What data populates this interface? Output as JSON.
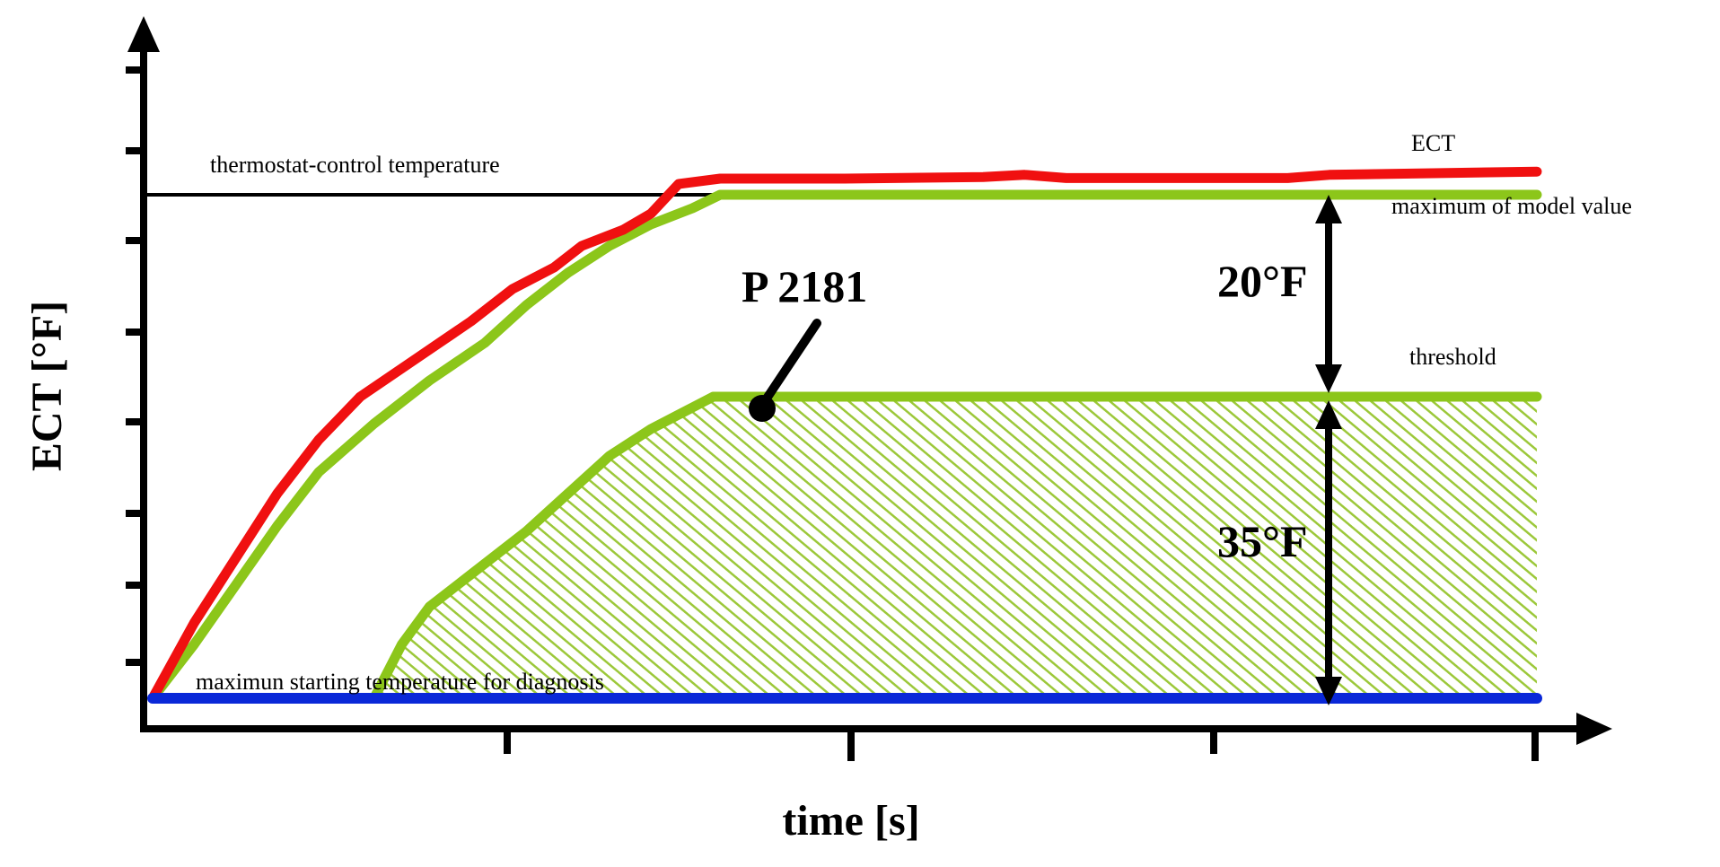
{
  "chart_data": {
    "type": "line",
    "xlabel": "time [s]",
    "ylabel": "ECT [°F]",
    "x_ticks": 4,
    "y_ticks": 7,
    "series": [
      {
        "name": "ECT",
        "color": "#f01010",
        "points": [
          [
            0,
            0
          ],
          [
            0.03,
            0.14
          ],
          [
            0.06,
            0.26
          ],
          [
            0.09,
            0.38
          ],
          [
            0.12,
            0.48
          ],
          [
            0.15,
            0.56
          ],
          [
            0.19,
            0.63
          ],
          [
            0.23,
            0.7
          ],
          [
            0.26,
            0.76
          ],
          [
            0.29,
            0.8
          ],
          [
            0.31,
            0.84
          ],
          [
            0.34,
            0.87
          ],
          [
            0.36,
            0.9
          ],
          [
            0.38,
            0.955
          ],
          [
            0.41,
            0.965
          ],
          [
            0.5,
            0.965
          ],
          [
            0.6,
            0.968
          ],
          [
            0.63,
            0.972
          ],
          [
            0.66,
            0.966
          ],
          [
            0.82,
            0.966
          ],
          [
            0.85,
            0.972
          ],
          [
            1.0,
            0.978
          ]
        ]
      },
      {
        "name": "maximum of model value",
        "color": "#8cc61a",
        "points": [
          [
            0,
            0
          ],
          [
            0.03,
            0.1
          ],
          [
            0.06,
            0.21
          ],
          [
            0.09,
            0.32
          ],
          [
            0.12,
            0.42
          ],
          [
            0.16,
            0.51
          ],
          [
            0.2,
            0.59
          ],
          [
            0.24,
            0.66
          ],
          [
            0.27,
            0.73
          ],
          [
            0.3,
            0.79
          ],
          [
            0.33,
            0.84
          ],
          [
            0.36,
            0.88
          ],
          [
            0.39,
            0.91
          ],
          [
            0.41,
            0.935
          ],
          [
            1.0,
            0.935
          ]
        ]
      },
      {
        "name": "threshold",
        "color": "#8cc61a",
        "points": [
          [
            0.16,
            0
          ],
          [
            0.18,
            0.1
          ],
          [
            0.2,
            0.17
          ],
          [
            0.23,
            0.23
          ],
          [
            0.27,
            0.31
          ],
          [
            0.3,
            0.38
          ],
          [
            0.33,
            0.45
          ],
          [
            0.36,
            0.5
          ],
          [
            0.39,
            0.54
          ],
          [
            0.405,
            0.56
          ],
          [
            1.0,
            0.56
          ]
        ]
      },
      {
        "name": "maximun starting temperature for diagnosis",
        "color": "#0a28d8",
        "points": [
          [
            0,
            0
          ],
          [
            1.0,
            0
          ]
        ]
      }
    ],
    "reference_lines": [
      {
        "label": "thermostat-control temperature",
        "y": 0.935,
        "color": "#000000"
      }
    ],
    "annotations": [
      {
        "text": "P 2181",
        "role": "fault-code"
      },
      {
        "text": "20°F",
        "role": "gap-max-model-to-threshold"
      },
      {
        "text": "35°F",
        "role": "gap-threshold-to-start"
      },
      {
        "text": "ECT",
        "role": "series-label"
      },
      {
        "text": "maximum of model value",
        "role": "series-label"
      },
      {
        "text": "threshold",
        "role": "series-label"
      },
      {
        "text": "maximun starting temperature for diagnosis",
        "role": "series-label"
      },
      {
        "text": "thermostat-control temperature",
        "role": "reference-label"
      }
    ],
    "hatch_color": "#9cc83a",
    "legend": "none"
  }
}
